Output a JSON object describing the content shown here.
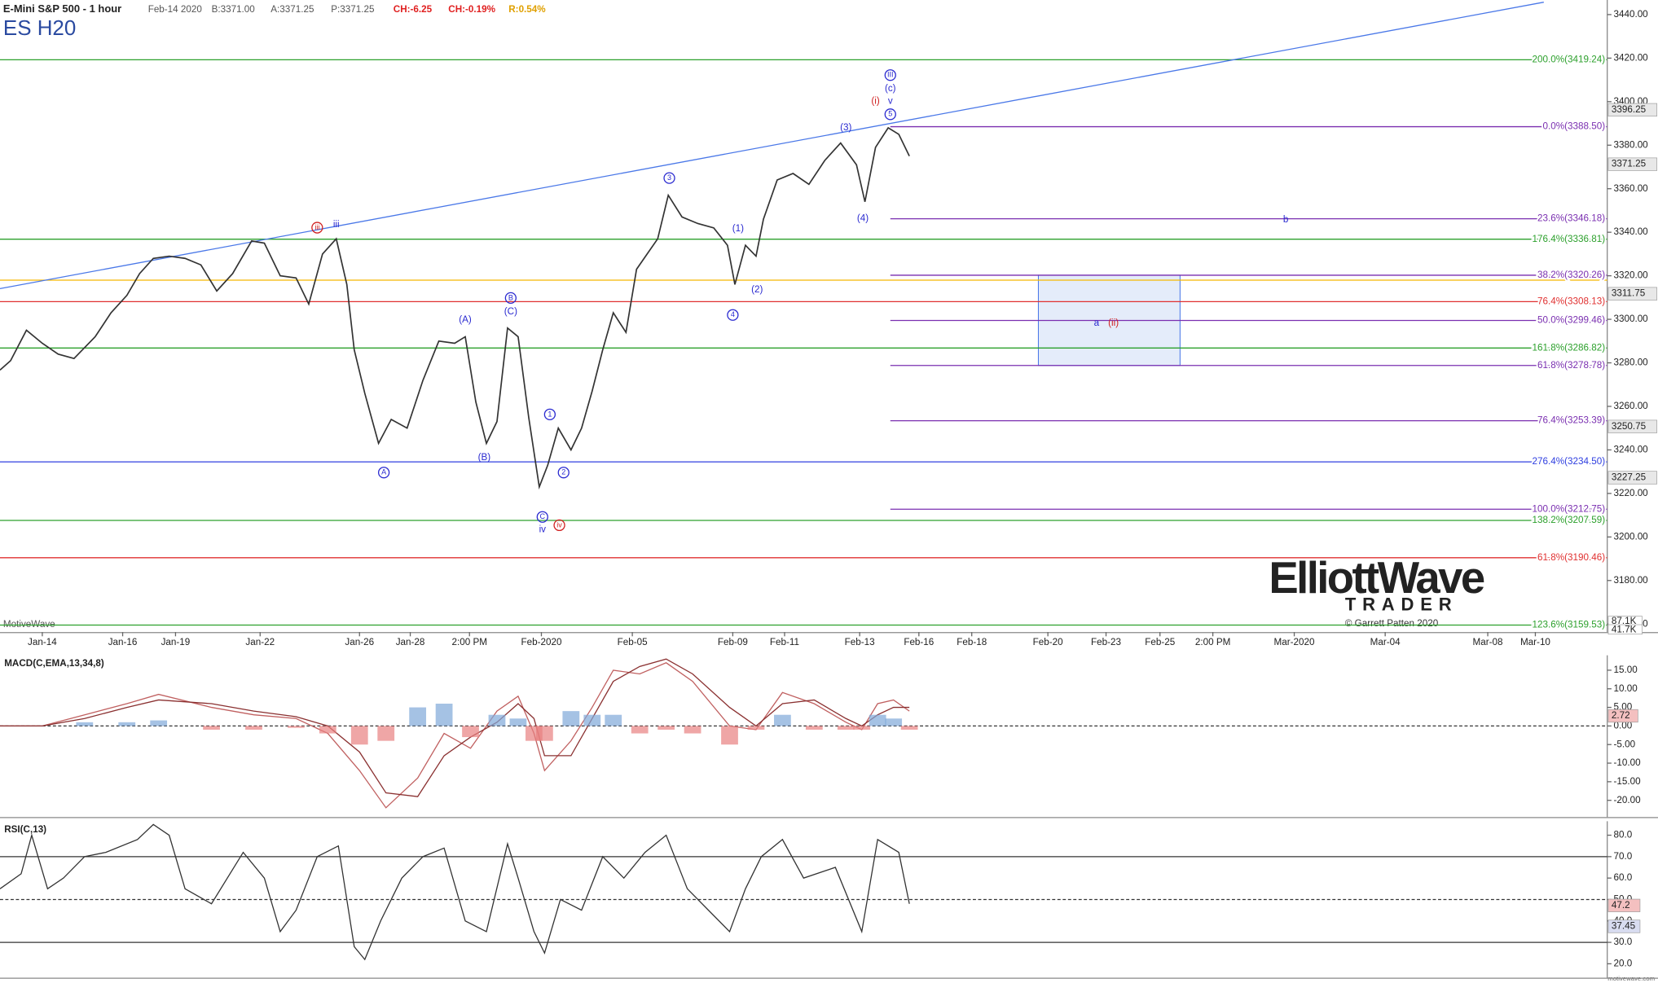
{
  "header": {
    "symbol_name": "E-Mini S&P 500 - 1 hour",
    "date": "Feb-14 2020",
    "bid": "B:3371.00",
    "ask": "A:3371.25",
    "price": "P:3371.25",
    "change": "CH:-6.25",
    "change_pct": "CH:-0.19%",
    "range": "R:0.54%",
    "ticker": "ES H20",
    "watermark": "MotiveWave",
    "logo_top": "ElliottWave",
    "logo_bottom": "TRADER",
    "copyright": "© Garrett Patten 2020",
    "footer": "motivewave.com"
  },
  "chart_data": [
    {
      "type": "line",
      "title": "ES H20 price",
      "xlim": [
        0,
        1520
      ],
      "ylim": [
        3156.3,
        3446.7
      ],
      "xticks": [
        {
          "value": 40,
          "label": "Jan-14"
        },
        {
          "value": 116,
          "label": "Jan-16"
        },
        {
          "value": 166,
          "label": "Jan-19"
        },
        {
          "value": 246,
          "label": "Jan-22"
        },
        {
          "value": 340,
          "label": "Jan-26"
        },
        {
          "value": 388,
          "label": "Jan-28"
        },
        {
          "value": 444,
          "label": "2:00 PM"
        },
        {
          "value": 512,
          "label": "Feb-2020"
        },
        {
          "value": 598,
          "label": "Feb-05"
        },
        {
          "value": 693,
          "label": "Feb-09"
        },
        {
          "value": 742,
          "label": "Feb-11"
        },
        {
          "value": 813,
          "label": "Feb-13"
        },
        {
          "value": 869,
          "label": "Feb-16"
        },
        {
          "value": 919,
          "label": "Feb-18"
        },
        {
          "value": 991,
          "label": "Feb-20"
        },
        {
          "value": 1046,
          "label": "Feb-23"
        },
        {
          "value": 1097,
          "label": "Feb-25"
        },
        {
          "value": 1147,
          "label": "2:00 PM"
        },
        {
          "value": 1224,
          "label": "Mar-2020"
        },
        {
          "value": 1310,
          "label": "Mar-04"
        },
        {
          "value": 1407,
          "label": "Mar-08"
        },
        {
          "value": 1452,
          "label": "Mar-10"
        }
      ],
      "yticks": [
        {
          "value": 3440,
          "label": "3440.00"
        },
        {
          "value": 3420,
          "label": "3420.00"
        },
        {
          "value": 3400,
          "label": "3400.00"
        },
        {
          "value": 3380,
          "label": "3380.00"
        },
        {
          "value": 3360,
          "label": "3360.00"
        },
        {
          "value": 3340,
          "label": "3340.00"
        },
        {
          "value": 3320,
          "label": "3320.00"
        },
        {
          "value": 3300,
          "label": "3300.00"
        },
        {
          "value": 3280,
          "label": "3280.00"
        },
        {
          "value": 3260,
          "label": "3260.00"
        },
        {
          "value": 3240,
          "label": "3240.00"
        },
        {
          "value": 3220,
          "label": "3220.00"
        },
        {
          "value": 3200,
          "label": "3200.00"
        },
        {
          "value": 3180,
          "label": "3180.00"
        },
        {
          "value": 3160,
          "label": "3160.00"
        }
      ],
      "series": [
        {
          "name": "ES H20",
          "color": "#333333",
          "x": [
            0,
            10,
            25,
            40,
            55,
            70,
            90,
            105,
            120,
            132,
            145,
            160,
            175,
            190,
            205,
            220,
            238,
            250,
            265,
            280,
            292,
            305,
            318,
            328,
            335,
            345,
            358,
            370,
            385,
            400,
            415,
            430,
            440,
            450,
            460,
            470,
            480,
            490,
            500,
            510,
            518,
            528,
            540,
            550,
            560,
            570,
            580,
            592,
            602,
            612,
            622,
            632,
            645,
            660,
            675,
            688,
            695,
            705,
            715,
            722,
            735,
            750,
            765,
            780,
            795,
            810,
            818,
            828,
            840,
            850,
            860
          ],
          "values": [
            3276.7,
            3281,
            3295,
            3289,
            3284,
            3282,
            3292,
            3303,
            3311,
            3321,
            3328,
            3329,
            3328,
            3325,
            3313,
            3321,
            3336,
            3335,
            3320,
            3319,
            3307,
            3330,
            3337,
            3316,
            3286,
            3266,
            3243,
            3254,
            3250,
            3272,
            3290,
            3289,
            3292,
            3262,
            3243,
            3253,
            3296,
            3292,
            3255,
            3223,
            3233,
            3250,
            3240,
            3250,
            3267,
            3286,
            3303,
            3294,
            3323,
            3330,
            3337,
            3357,
            3347,
            3344,
            3342,
            3334,
            3316,
            3334,
            3329,
            3346,
            3364,
            3367,
            3362,
            3373,
            3381,
            3371,
            3354,
            3379,
            3388,
            3385,
            3375
          ]
        }
      ],
      "levels": [
        {
          "label": "200.0%(3419.24)",
          "value": 3419.24,
          "from": 0,
          "color": "#2ca02c"
        },
        {
          "label": "0.0%(3388.50)",
          "value": 3388.5,
          "from": 842,
          "color": "#7a2fb0"
        },
        {
          "label": "23.6%(3346.18)",
          "value": 3346.18,
          "from": 842,
          "color": "#7a2fb0"
        },
        {
          "label": "176.4%(3336.81)",
          "value": 3336.81,
          "from": 0,
          "color": "#2ca02c"
        },
        {
          "label": "38.2%(3320.26)",
          "value": 3320.26,
          "from": 842,
          "color": "#7a2fb0"
        },
        {
          "label": "76.4%(3308.13)",
          "value": 3308.13,
          "from": 0,
          "color": "#e03030"
        },
        {
          "label": "50.0%(3299.46)",
          "value": 3299.46,
          "from": 842,
          "color": "#7a2fb0"
        },
        {
          "label": "161.8%(3286.82)",
          "value": 3286.82,
          "from": 0,
          "color": "#2ca02c"
        },
        {
          "label": "61.8%(3278.78)",
          "value": 3278.78,
          "from": 842,
          "color": "#7a2fb0"
        },
        {
          "label": "76.4%(3253.39)",
          "value": 3253.39,
          "from": 842,
          "color": "#7a2fb0"
        },
        {
          "label": "276.4%(3234.50)",
          "value": 3234.5,
          "from": 0,
          "color": "#3040e0"
        },
        {
          "label": "100.0%(3212.75)",
          "value": 3212.75,
          "from": 842,
          "color": "#7a2fb0"
        },
        {
          "label": "138.2%(3207.59)",
          "value": 3207.59,
          "from": 0,
          "color": "#2ca02c"
        },
        {
          "label": "61.8%(3190.46)",
          "value": 3190.46,
          "from": 0,
          "color": "#e03030"
        },
        {
          "label": "123.6%(3159.53)",
          "value": 3159.53,
          "from": 0,
          "color": "#2ca02c"
        }
      ],
      "hlines": [
        {
          "value": 3318,
          "color": "#f5b800"
        }
      ],
      "trendline": {
        "x": [
          0,
          1460
        ],
        "values": [
          3314.1,
          3445.7
        ],
        "color": "#4a78e8"
      },
      "box": {
        "x": [
          982,
          1116
        ],
        "values": [
          3320.26,
          3278.78
        ]
      },
      "price_tags": [
        3396.25,
        3371.25,
        3311.75,
        3250.75,
        3227.25
      ],
      "volume_tags": [
        "87.1K",
        "41.7K"
      ],
      "annotations": [
        {
          "text": "iii",
          "x": 300,
          "y": 3342.1,
          "circled": true,
          "color": "#d02020"
        },
        {
          "text": "iii",
          "x": 318,
          "y": 3343.5,
          "circled": false,
          "color": "#2a2ad0"
        },
        {
          "text": "A",
          "x": 363,
          "y": 3229.6,
          "circled": true,
          "color": "#2a2ad0"
        },
        {
          "text": "(A)",
          "x": 440,
          "y": 3299.6,
          "circled": false,
          "color": "#2a2ad0"
        },
        {
          "text": "B",
          "x": 483,
          "y": 3309.8,
          "circled": true,
          "color": "#2a2ad0"
        },
        {
          "text": "(C)",
          "x": 483,
          "y": 3303.5,
          "circled": false,
          "color": "#2a2ad0"
        },
        {
          "text": "(B)",
          "x": 458,
          "y": 3236.4,
          "circled": false,
          "color": "#2a2ad0"
        },
        {
          "text": "1",
          "x": 520,
          "y": 3256.3,
          "circled": true,
          "color": "#2a2ad0"
        },
        {
          "text": "2",
          "x": 533,
          "y": 3229.6,
          "circled": true,
          "color": "#2a2ad0"
        },
        {
          "text": "C",
          "x": 513,
          "y": 3209.2,
          "circled": true,
          "color": "#2a2ad0"
        },
        {
          "text": "iv",
          "x": 513,
          "y": 3203.4,
          "circled": false,
          "color": "#2a2ad0"
        },
        {
          "text": "iv",
          "x": 529,
          "y": 3205.4,
          "circled": true,
          "color": "#d02020"
        },
        {
          "text": "3",
          "x": 633,
          "y": 3364.9,
          "circled": true,
          "color": "#2a2ad0"
        },
        {
          "text": "(1)",
          "x": 698,
          "y": 3341.6,
          "circled": false,
          "color": "#2a2ad0"
        },
        {
          "text": "(2)",
          "x": 716,
          "y": 3313.5,
          "circled": false,
          "color": "#2a2ad0"
        },
        {
          "text": "4",
          "x": 693,
          "y": 3302.0,
          "circled": true,
          "color": "#2a2ad0"
        },
        {
          "text": "(3)",
          "x": 800,
          "y": 3388.0,
          "circled": false,
          "color": "#2a2ad0"
        },
        {
          "text": "(4)",
          "x": 816,
          "y": 3346.2,
          "circled": false,
          "color": "#2a2ad0"
        },
        {
          "text": "5",
          "x": 842,
          "y": 3394.2,
          "circled": true,
          "color": "#2a2ad0"
        },
        {
          "text": "v",
          "x": 842,
          "y": 3400.1,
          "circled": false,
          "color": "#2a2ad0"
        },
        {
          "text": "(c)",
          "x": 842,
          "y": 3405.9,
          "circled": false,
          "color": "#2a2ad0"
        },
        {
          "text": "III",
          "x": 842,
          "y": 3412.2,
          "circled": true,
          "color": "#2a2ad0"
        },
        {
          "text": "(i)",
          "x": 828,
          "y": 3400.1,
          "circled": false,
          "color": "#d02020"
        },
        {
          "text": "b",
          "x": 1216,
          "y": 3345.7,
          "circled": false,
          "color": "#2a2ad0"
        },
        {
          "text": "a",
          "x": 1037,
          "y": 3298.1,
          "circled": false,
          "color": "#2a2ad0"
        },
        {
          "text": "(ii)",
          "x": 1053,
          "y": 3298.1,
          "circled": false,
          "color": "#d02020"
        }
      ]
    },
    {
      "type": "macd",
      "title": "MACD(C,EMA,13,34,8)",
      "xlim": [
        0,
        1520
      ],
      "ylim": [
        -24.5,
        19
      ],
      "yticks": [
        {
          "value": 15,
          "label": "15.00"
        },
        {
          "value": 10,
          "label": "10.00"
        },
        {
          "value": 5,
          "label": "5.00"
        },
        {
          "value": 0,
          "label": "0.00"
        },
        {
          "value": -5,
          "label": "-5.00"
        },
        {
          "value": -10,
          "label": "-10.00"
        },
        {
          "value": -15,
          "label": "-15.00"
        },
        {
          "value": -20,
          "label": "-20.00"
        }
      ],
      "x": [
        0,
        40,
        80,
        120,
        150,
        200,
        240,
        280,
        310,
        340,
        365,
        395,
        420,
        445,
        470,
        490,
        505,
        515,
        540,
        560,
        580,
        605,
        630,
        655,
        690,
        715,
        740,
        770,
        800,
        815,
        830,
        845,
        860
      ],
      "series": [
        {
          "name": "MACD",
          "color": "#c06060",
          "values": [
            0,
            0,
            3,
            6,
            8.5,
            5,
            3,
            2,
            -2,
            -12,
            -22,
            -14,
            -2,
            -6,
            4,
            8,
            -2,
            -12,
            -4,
            5,
            15,
            14,
            17,
            12,
            0,
            -1,
            9,
            6,
            1,
            -1,
            6,
            7,
            4
          ]
        },
        {
          "name": "Signal",
          "color": "#8a3030",
          "values": [
            0,
            0,
            2,
            5,
            7,
            6,
            4,
            2.5,
            0,
            -7,
            -18,
            -19,
            -8,
            -3,
            1,
            6,
            2,
            -8,
            -8,
            2,
            12,
            16,
            18,
            14,
            5,
            0,
            6,
            7,
            2,
            0,
            3,
            5,
            5
          ]
        },
        {
          "name": "Histogram",
          "color": "#7fa8d8",
          "values": [
            0,
            0,
            1,
            1,
            1.5,
            -1,
            -1,
            -0.5,
            -2,
            -5,
            -4,
            5,
            6,
            -3,
            3,
            2,
            -4,
            -4,
            4,
            3,
            3,
            -2,
            -1,
            -2,
            -5,
            -1,
            3,
            -1,
            -1,
            -1,
            3,
            2,
            -1
          ]
        }
      ],
      "tag": 2.72
    },
    {
      "type": "rsi",
      "title": "RSI(C,13)",
      "xlim": [
        0,
        1520
      ],
      "ylim": [
        13.5,
        86.5
      ],
      "yticks": [
        {
          "value": 80,
          "label": "80.0"
        },
        {
          "value": 70,
          "label": "70.0"
        },
        {
          "value": 60,
          "label": "60.0"
        },
        {
          "value": 50,
          "label": "50.0"
        },
        {
          "value": 40,
          "label": "40.0"
        },
        {
          "value": 30,
          "label": "30.0"
        },
        {
          "value": 20,
          "label": "20.0"
        }
      ],
      "bands": [
        70,
        50,
        30
      ],
      "x": [
        0,
        20,
        30,
        45,
        60,
        80,
        100,
        130,
        145,
        160,
        175,
        200,
        230,
        250,
        265,
        280,
        300,
        320,
        335,
        345,
        360,
        380,
        400,
        420,
        440,
        460,
        480,
        490,
        505,
        515,
        530,
        550,
        570,
        590,
        610,
        630,
        650,
        670,
        690,
        705,
        720,
        740,
        760,
        790,
        815,
        830,
        850,
        860
      ],
      "series": [
        {
          "name": "RSI",
          "color": "#333333",
          "values": [
            55,
            62,
            80,
            55,
            60,
            70,
            72,
            78,
            85,
            80,
            55,
            48,
            72,
            60,
            35,
            45,
            70,
            75,
            28,
            22,
            40,
            60,
            70,
            74,
            40,
            35,
            76,
            60,
            35,
            25,
            50,
            45,
            70,
            60,
            72,
            80,
            55,
            45,
            35,
            55,
            70,
            78,
            60,
            65,
            35,
            78,
            72,
            48
          ]
        }
      ],
      "tags": [
        47.2,
        37.45
      ]
    }
  ]
}
